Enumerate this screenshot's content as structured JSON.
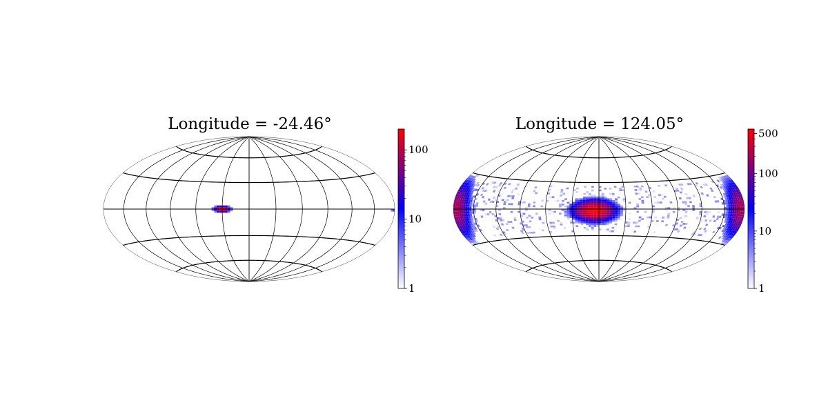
{
  "chart_data": [
    {
      "type": "heatmap",
      "projection": "hammer (all-sky, longitude/latitude)",
      "title": "Longitude = -24.46°",
      "graticule": true,
      "colorbar": {
        "scale": "log",
        "range": [
          1,
          200
        ],
        "ticks": [
          1,
          10,
          100
        ],
        "tick_labels": [
          "1",
          "10",
          "100"
        ],
        "colormap": [
          "#ffffff",
          "#0000ff",
          "#ff0000"
        ]
      },
      "clusters": [
        {
          "lon": -30,
          "lat": 0,
          "peak": 200,
          "sigma_lon": 4,
          "sigma_lat": 1.5
        },
        {
          "lon": 178,
          "lat": -1,
          "peak": 8,
          "sigma_lon": 2,
          "sigma_lat": 1
        }
      ]
    },
    {
      "type": "heatmap",
      "projection": "hammer (all-sky, longitude/latitude)",
      "title": "Longitude = 124.05°",
      "graticule": true,
      "colorbar": {
        "scale": "log",
        "range": [
          1,
          600
        ],
        "ticks": [
          1,
          10,
          100,
          500
        ],
        "tick_labels": [
          "1",
          "10",
          "100",
          "500"
        ],
        "colormap": [
          "#ffffff",
          "#0000ff",
          "#ff0000"
        ]
      },
      "clusters": [
        {
          "lon": -5,
          "lat": -2,
          "peak": 600,
          "sigma_lon": 10,
          "sigma_lat": 5
        },
        {
          "lon": 175,
          "lat": 0,
          "peak": 200,
          "sigma_lon": 8,
          "sigma_lat": 10
        },
        {
          "lon": -175,
          "lat": 0,
          "peak": 200,
          "sigma_lon": 8,
          "sigma_lat": 10
        }
      ],
      "scatter_band": {
        "lat_range": [
          -25,
          25
        ],
        "level": 2
      }
    }
  ]
}
